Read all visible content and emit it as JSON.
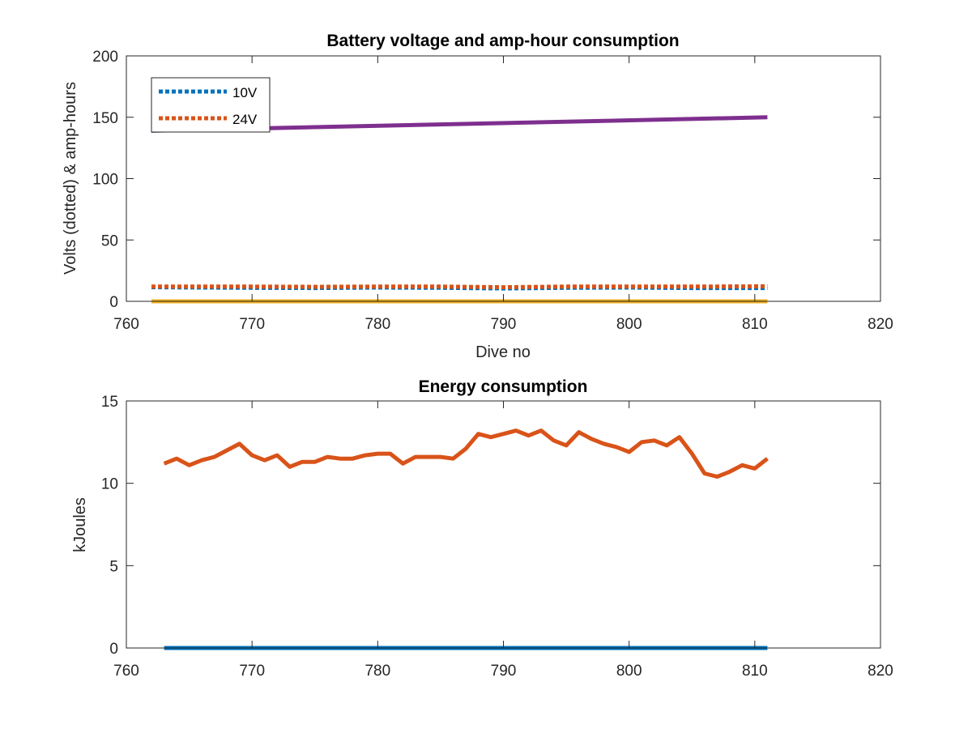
{
  "chart_data": [
    {
      "type": "line",
      "title": "Battery voltage and amp-hour consumption",
      "xlabel": "Dive no",
      "ylabel": "Volts (dotted) & amp-hours",
      "xlim": [
        760,
        820
      ],
      "ylim": [
        0,
        200
      ],
      "xticks": [
        760,
        770,
        780,
        790,
        800,
        810,
        820
      ],
      "yticks": [
        0,
        50,
        100,
        150,
        200
      ],
      "grid": false,
      "legend_position": "top-left",
      "series": [
        {
          "name": "10V",
          "style": "dotted",
          "color": "#0072BD",
          "in_legend": true,
          "x": [
            762,
            765,
            770,
            775,
            780,
            785,
            790,
            795,
            800,
            805,
            811
          ],
          "y": [
            11.5,
            11.3,
            11.0,
            10.8,
            11.2,
            11.0,
            10.5,
            11.0,
            11.2,
            10.8,
            10.8
          ]
        },
        {
          "name": "24V",
          "style": "dotted",
          "color": "#D95319",
          "in_legend": true,
          "x": [
            762,
            765,
            770,
            775,
            780,
            785,
            790,
            795,
            800,
            805,
            811
          ],
          "y": [
            12.0,
            12.0,
            12.0,
            11.8,
            12.0,
            12.0,
            11.5,
            12.0,
            12.0,
            12.0,
            12.2
          ]
        },
        {
          "style": "solid",
          "color": "#EDB120",
          "in_legend": false,
          "x": [
            762,
            811
          ],
          "y": [
            0,
            0
          ]
        },
        {
          "style": "solid",
          "color": "#7E2F8E",
          "in_legend": false,
          "x": [
            762,
            811
          ],
          "y": [
            139,
            150
          ]
        }
      ]
    },
    {
      "type": "line",
      "title": "Energy consumption",
      "xlabel": "",
      "ylabel": "kJoules",
      "xlim": [
        760,
        820
      ],
      "ylim": [
        0,
        15
      ],
      "xticks": [
        760,
        770,
        780,
        790,
        800,
        810,
        820
      ],
      "yticks": [
        0,
        5,
        10,
        15
      ],
      "grid": false,
      "series": [
        {
          "style": "solid",
          "color": "#0072BD",
          "x": [
            763,
            811
          ],
          "y": [
            0,
            0
          ]
        },
        {
          "style": "solid",
          "color": "#D95319",
          "x": [
            763,
            764,
            765,
            766,
            767,
            768,
            769,
            770,
            771,
            772,
            773,
            774,
            775,
            776,
            777,
            778,
            779,
            780,
            781,
            782,
            783,
            784,
            785,
            786,
            787,
            788,
            789,
            790,
            791,
            792,
            793,
            794,
            795,
            796,
            797,
            798,
            799,
            800,
            801,
            802,
            803,
            804,
            805,
            806,
            807,
            808,
            809,
            810,
            811
          ],
          "y": [
            11.2,
            11.5,
            11.1,
            11.4,
            11.6,
            12.0,
            12.4,
            11.7,
            11.4,
            11.7,
            11.0,
            11.3,
            11.3,
            11.6,
            11.5,
            11.5,
            11.7,
            11.8,
            11.8,
            11.2,
            11.6,
            11.6,
            11.6,
            11.5,
            12.1,
            13.0,
            12.8,
            13.0,
            13.2,
            12.9,
            13.2,
            12.6,
            12.3,
            13.1,
            12.7,
            12.4,
            12.2,
            11.9,
            12.5,
            12.6,
            12.3,
            12.8,
            11.8,
            10.6,
            10.4,
            10.7,
            11.1,
            10.9,
            11.5
          ]
        }
      ]
    }
  ]
}
